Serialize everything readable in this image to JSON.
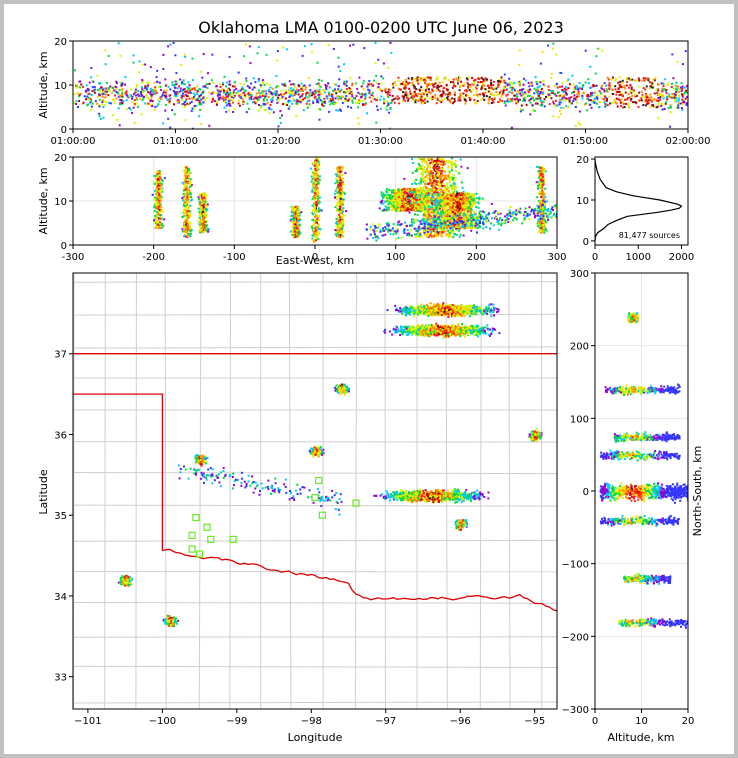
{
  "figure": {
    "title": "Oklahoma LMA 0100-0200 UTC June 06, 2023",
    "source_count": "81,477 sources"
  },
  "chart_data": [
    {
      "panel": "time-altitude",
      "type": "scatter",
      "title": "Oklahoma LMA 0100-0200 UTC June 06, 2023",
      "xlabel": "",
      "ylabel": "Altitude, km",
      "xticks": [
        "01:00:00",
        "01:10:00",
        "01:20:00",
        "01:30:00",
        "01:40:00",
        "01:50:00",
        "02:00:00"
      ],
      "xlim": [
        "01:00:00",
        "02:00:00"
      ],
      "yticks": [
        0,
        10,
        20
      ],
      "ylim": [
        0,
        20
      ],
      "colormap": "density: blue-green-yellow-red-black",
      "dense_regions": [
        {
          "start": "01:31:00",
          "end": "01:42:00",
          "alt_km": [
            6,
            12
          ]
        },
        {
          "start": "01:52:00",
          "end": "01:57:00",
          "alt_km": [
            5,
            12
          ]
        }
      ]
    },
    {
      "panel": "east-west-altitude",
      "type": "scatter",
      "xlabel": "East-West, km",
      "ylabel": "Altitude, km",
      "xticks": [
        -300,
        -200,
        -100,
        0,
        100,
        200,
        300
      ],
      "xlim": [
        -300,
        300
      ],
      "yticks": [
        0,
        10,
        20
      ],
      "ylim": [
        0,
        20
      ],
      "clusters": [
        {
          "x": -195,
          "alt": [
            4,
            17
          ]
        },
        {
          "x": -160,
          "alt": [
            2,
            18
          ]
        },
        {
          "x": -140,
          "alt": [
            3,
            12
          ]
        },
        {
          "x": -25,
          "alt": [
            2,
            9
          ]
        },
        {
          "x": 0,
          "alt": [
            1,
            20
          ]
        },
        {
          "x": 30,
          "alt": [
            2,
            18
          ]
        },
        {
          "x": 115,
          "alt": [
            8,
            13
          ]
        },
        {
          "x": 150,
          "alt": [
            2,
            20
          ]
        },
        {
          "x": 175,
          "alt": [
            4,
            12
          ]
        },
        {
          "x": 280,
          "alt": [
            3,
            18
          ]
        }
      ]
    },
    {
      "panel": "altitude-histogram",
      "type": "line",
      "xlabel": "",
      "ylabel": "",
      "xticks": [
        0,
        1000,
        2000
      ],
      "xlim": [
        0,
        2150
      ],
      "yticks": [
        0,
        10,
        20
      ],
      "ylim": [
        -1,
        20.5
      ],
      "x": [
        0,
        10,
        60,
        200,
        300,
        500,
        750,
        1100,
        1450,
        1750,
        1950,
        2000,
        1900,
        1500,
        900,
        500,
        260,
        120,
        50,
        10,
        0
      ],
      "y": [
        0,
        1,
        2,
        3,
        4,
        5,
        6,
        6.5,
        7,
        7.5,
        8,
        8.5,
        9,
        10,
        11,
        12,
        13,
        15,
        17,
        19,
        20
      ]
    },
    {
      "panel": "plan-view",
      "type": "scatter",
      "xlabel": "Longitude",
      "ylabel": "Latitude",
      "xticks": [
        -101,
        -100,
        -99,
        -98,
        -97,
        -96,
        -95
      ],
      "xlim": [
        -101.2,
        -94.7
      ],
      "yticks": [
        33,
        34,
        35,
        36,
        37
      ],
      "ylim": [
        32.6,
        38.0
      ],
      "clusters": [
        {
          "lon": -96.2,
          "lat": 37.55
        },
        {
          "lon": -96.25,
          "lat": 37.3
        },
        {
          "lon": -97.6,
          "lat": 36.57
        },
        {
          "lon": -95.0,
          "lat": 36.0
        },
        {
          "lon": -99.5,
          "lat": 35.7
        },
        {
          "lon": -97.95,
          "lat": 35.8
        },
        {
          "lon": -96.4,
          "lat": 35.25
        },
        {
          "lon": -96.0,
          "lat": 34.9
        },
        {
          "lon": -99.9,
          "lat": 33.7
        },
        {
          "lon": -100.5,
          "lat": 34.2
        }
      ],
      "stations": [
        {
          "lon": -99.55,
          "lat": 34.97
        },
        {
          "lon": -99.4,
          "lat": 34.85
        },
        {
          "lon": -99.6,
          "lat": 34.75
        },
        {
          "lon": -99.35,
          "lat": 34.7
        },
        {
          "lon": -99.05,
          "lat": 34.7
        },
        {
          "lon": -99.6,
          "lat": 34.58
        },
        {
          "lon": -99.5,
          "lat": 34.52
        },
        {
          "lon": -97.9,
          "lat": 35.43
        },
        {
          "lon": -97.95,
          "lat": 35.22
        },
        {
          "lon": -97.85,
          "lat": 35.0
        },
        {
          "lon": -97.4,
          "lat": 35.15
        }
      ]
    },
    {
      "panel": "north-south-altitude",
      "type": "scatter",
      "xlabel": "Altitude, km",
      "ylabel": "North-South, km",
      "xticks": [
        0,
        10,
        20
      ],
      "xlim": [
        0,
        20
      ],
      "yticks": [
        -300,
        -200,
        -100,
        0,
        100,
        200,
        300
      ],
      "ylim": [
        -300,
        300
      ],
      "clusters": [
        {
          "ns": 240,
          "alt": [
            7,
            9
          ]
        },
        {
          "ns": 140,
          "alt": [
            2,
            18
          ]
        },
        {
          "ns": 75,
          "alt": [
            4,
            18
          ]
        },
        {
          "ns": 50,
          "alt": [
            1,
            18
          ]
        },
        {
          "ns": 0,
          "alt": [
            1,
            20
          ]
        },
        {
          "ns": -40,
          "alt": [
            1,
            18
          ]
        },
        {
          "ns": -120,
          "alt": [
            6,
            16
          ]
        },
        {
          "ns": -180,
          "alt": [
            5,
            20
          ]
        }
      ]
    }
  ]
}
